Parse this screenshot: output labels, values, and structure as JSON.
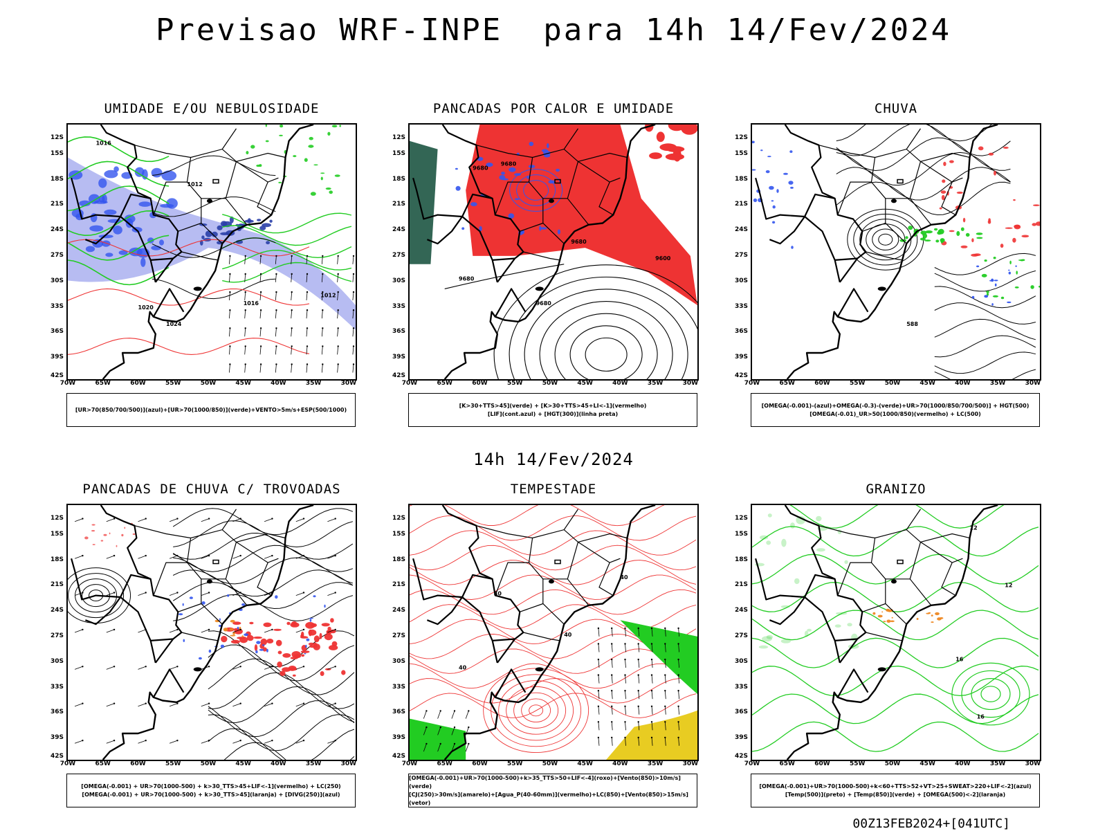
{
  "title": "Previsao WRF-INPE  para 14h 14/Fev/2024",
  "mid_label": "14h 14/Fev/2024",
  "footer": "00Z13FEB2024+[041UTC]",
  "lat_labels": [
    "12S",
    "15S",
    "18S",
    "21S",
    "24S",
    "27S",
    "30S",
    "33S",
    "36S",
    "39S",
    "42S"
  ],
  "lon_labels": [
    "70W",
    "65W",
    "60W",
    "55W",
    "50W",
    "45W",
    "40W",
    "35W",
    "30W"
  ],
  "colors": {
    "blue": "#3355ee",
    "green": "#22cc22",
    "red": "#ee3333",
    "lavender": "#aab0f0",
    "orange": "#ee8822",
    "yellow": "#e8cc22",
    "darkgreen": "#336655",
    "purple": "#7744cc"
  },
  "panels": [
    {
      "title": "UMIDADE E/OU NEBULOSIDADE",
      "legend": [
        "[UR>70(850/700/500)](azul)+[UR>70(1000/850)](verde)+VENTO>5m/s+ESP(500/1000)"
      ],
      "contour_labels": [
        "1016",
        "1012",
        "1020",
        "1024",
        "1016",
        "1012"
      ]
    },
    {
      "title": "PANCADAS POR CALOR E UMIDADE",
      "legend": [
        "[K>30+TTS>45](verde) + [K>30+TTS>45+LI<-1](vermelho)",
        "[LIF](cont.azul) + [HGT(300)](linha preta)"
      ],
      "contour_labels": [
        "9680",
        "9680",
        "9680",
        "9680",
        "9600",
        "9680"
      ]
    },
    {
      "title": "CHUVA",
      "legend": [
        "[OMEGA(-0.001)-(azul)+OMEGA(-0.3)-(verde)+UR>70(1000/850/700/500)] + HGT(500)",
        "[OMEGA(-0.01)_UR>50(1000/850)(vermelho) + LC(500)"
      ],
      "contour_labels": [
        "588"
      ]
    },
    {
      "title": "PANCADAS DE CHUVA C/ TROVOADAS",
      "legend": [
        "[OMEGA(-0.001) + UR>70(1000-500) + k>30_TTS>45+LIF<-1](vermelho) + LC(250)",
        "[OMEGA(-0.001) + UR>70(1000-500) + k>30_TTS>45](laranja) + [DIVG(250)](azul)"
      ],
      "contour_labels": []
    },
    {
      "title": "TEMPESTADE",
      "legend": [
        "[OMEGA(-0.001)+UR>70(1000-500)+k>35_TTS>50+LIF<-4](roxo)+[Vento(850)>10m/s](verde)",
        "[CJ(250)>30m/s](amarelo)+[Agua_P(40-60mm)](vermelho)+LC(850)+[Vento(850)>15m/s](vetor)"
      ],
      "contour_labels": [
        "40",
        "40",
        "40",
        "40"
      ]
    },
    {
      "title": "GRANIZO",
      "legend": [
        "[OMEGA(-0.001)+UR>70(1000-500)+k<60+TTS>52+VT>25+SWEAT>220+LIF<-2](azul)",
        "[Temp(500)](preto) + [Temp(850)](verde) + [OMEGA(500)<-2](laranja)"
      ],
      "contour_labels": [
        "12",
        "12",
        "16",
        "16"
      ]
    }
  ]
}
